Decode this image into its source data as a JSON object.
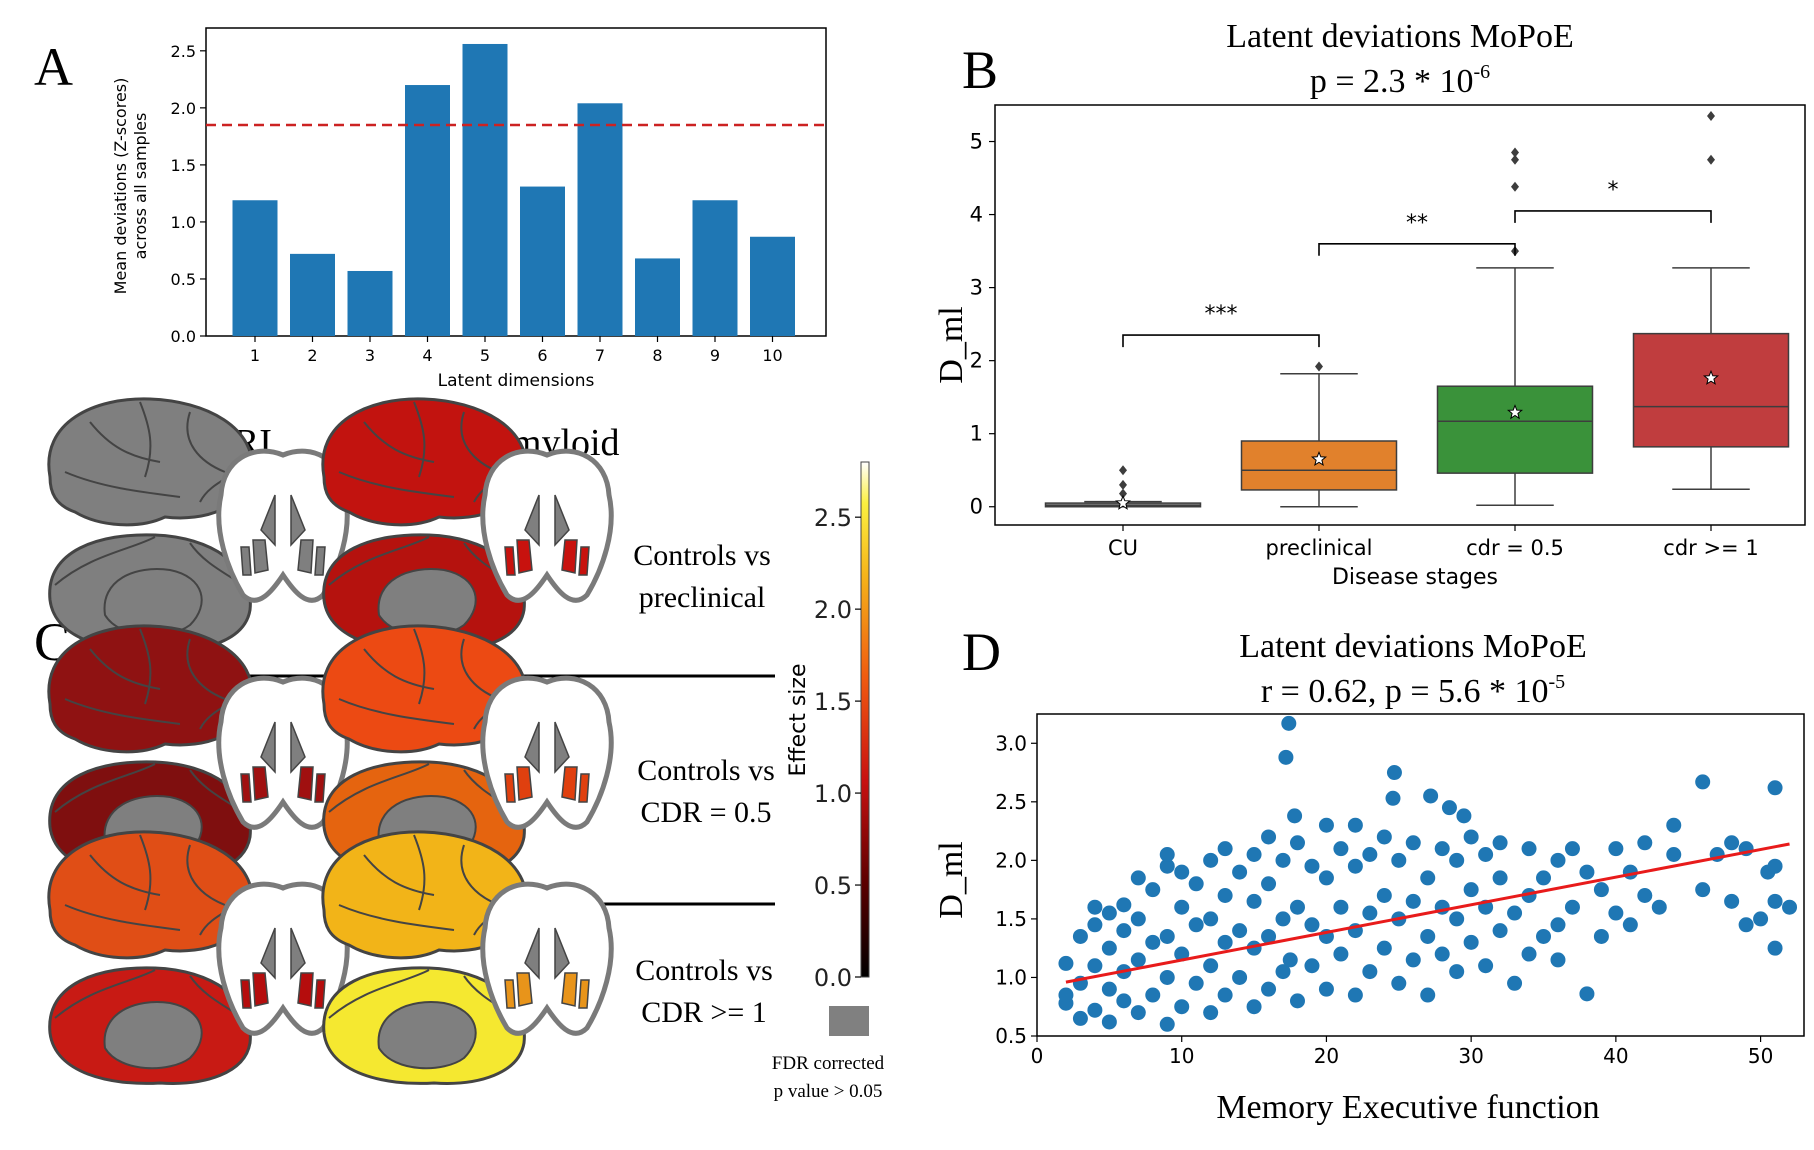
{
  "colors": {
    "bar": "#1f77b4",
    "threshold": "#cc2222",
    "box_preclinical": "#e1812c",
    "box_cdr05": "#3a923a",
    "box_cdr1": "#c03d3e",
    "scatter": "#1f77b4",
    "fit_line": "#e81b1b",
    "grey_region": "#808080"
  },
  "panel_letters": {
    "a": "A",
    "b": "B",
    "c": "C",
    "d": "D"
  },
  "panel_a": {
    "ylabel_line1": "Mean deviations (Z-scores)",
    "ylabel_line2": "across all samples",
    "xlabel": "Latent dimensions"
  },
  "panel_b": {
    "title_line1": "Latent deviations MoPoE",
    "title_p": "p = 2.3 * 10",
    "title_exp": "-6",
    "ylabel": "D_ml",
    "xlabel": "Disease stages",
    "significance": [
      "***",
      "**",
      "*"
    ]
  },
  "panel_c": {
    "col_mri": "MRI",
    "col_amyloid": "Amyloid",
    "rows": [
      {
        "line1": "Controls vs",
        "line2": "preclinical"
      },
      {
        "line1": "Controls vs",
        "line2": "CDR = 0.5"
      },
      {
        "line1": "Controls vs",
        "line2": "CDR >= 1"
      }
    ],
    "colorbar_label": "Effect size",
    "colorbar_ticks": [
      "2.5",
      "2.0",
      "1.5",
      "1.0",
      "0.5",
      "0.0"
    ],
    "legend_line1": "FDR corrected",
    "legend_line2": "p value > 0.05"
  },
  "panel_d": {
    "title_line1": "Latent deviations MoPoE",
    "title_stats": "r = 0.62, p = 5.6 * 10",
    "title_exp": "-5",
    "ylabel": "D_ml",
    "xlabel": "Memory Executive function"
  },
  "chart_data": [
    {
      "type": "bar",
      "categories": [
        "1",
        "2",
        "3",
        "4",
        "5",
        "6",
        "7",
        "8",
        "9",
        "10"
      ],
      "values": [
        1.19,
        0.72,
        0.57,
        2.2,
        2.56,
        1.31,
        2.04,
        0.68,
        1.19,
        0.87
      ],
      "threshold_line": 1.85,
      "xlabel": "Latent dimensions",
      "ylabel": "Mean deviations (Z-scores) across all samples",
      "ylim": [
        0,
        2.7
      ],
      "yticks": [
        "0.0",
        "0.5",
        "1.0",
        "1.5",
        "2.0",
        "2.5"
      ]
    },
    {
      "type": "box",
      "title": "Latent deviations MoPoE",
      "categories": [
        "CU",
        "preclinical",
        "cdr = 0.5",
        "cdr >= 1"
      ],
      "xlabel": "Disease stages",
      "ylabel": "D_ml",
      "ylim": [
        -0.25,
        5.5
      ],
      "yticks": [
        "0",
        "1",
        "2",
        "3",
        "4",
        "5"
      ],
      "boxes": [
        {
          "name": "CU",
          "whisker_low": 0.0,
          "q1": 0.0,
          "median": 0.02,
          "q3": 0.05,
          "whisker_high": 0.07,
          "mean": 0.05,
          "outliers": [
            0.18,
            0.3,
            0.5
          ]
        },
        {
          "name": "preclinical",
          "whisker_low": 0.0,
          "q1": 0.23,
          "median": 0.5,
          "q3": 0.9,
          "whisker_high": 1.82,
          "mean": 0.65,
          "outliers": [
            1.92
          ]
        },
        {
          "name": "cdr = 0.5",
          "whisker_low": 0.02,
          "q1": 0.46,
          "median": 1.17,
          "q3": 1.65,
          "whisker_high": 3.27,
          "mean": 1.29,
          "outliers": [
            3.5,
            4.38,
            4.75,
            4.85
          ]
        },
        {
          "name": "cdr >= 1",
          "whisker_low": 0.24,
          "q1": 0.82,
          "median": 1.37,
          "q3": 2.37,
          "whisker_high": 3.27,
          "mean": 1.76,
          "outliers": [
            4.75,
            5.35
          ]
        }
      ],
      "comparisons": [
        {
          "from": "CU",
          "to": "preclinical",
          "label": "***"
        },
        {
          "from": "preclinical",
          "to": "cdr = 0.5",
          "label": "**"
        },
        {
          "from": "cdr = 0.5",
          "to": "cdr >= 1",
          "label": "*"
        }
      ]
    },
    {
      "type": "scatter",
      "title": "Latent deviations MoPoE",
      "xlabel": "Memory Executive function",
      "ylabel": "D_ml",
      "xlim": [
        0,
        53
      ],
      "ylim": [
        0.5,
        3.25
      ],
      "xticks": [
        "0",
        "10",
        "20",
        "30",
        "40",
        "50"
      ],
      "yticks": [
        "0.5",
        "1.0",
        "1.5",
        "2.0",
        "2.5",
        "3.0"
      ],
      "fit_line": {
        "x": [
          2,
          52
        ],
        "y": [
          0.96,
          2.14
        ]
      },
      "points": [
        [
          2,
          0.78
        ],
        [
          2,
          0.85
        ],
        [
          2,
          1.12
        ],
        [
          3,
          0.65
        ],
        [
          3,
          0.95
        ],
        [
          3,
          1.35
        ],
        [
          4,
          0.72
        ],
        [
          4,
          1.1
        ],
        [
          4,
          1.45
        ],
        [
          4,
          1.6
        ],
        [
          5,
          0.62
        ],
        [
          5,
          0.9
        ],
        [
          5,
          1.25
        ],
        [
          5,
          1.55
        ],
        [
          6,
          0.8
        ],
        [
          6,
          1.05
        ],
        [
          6,
          1.4
        ],
        [
          6,
          1.62
        ],
        [
          7,
          0.7
        ],
        [
          7,
          1.15
        ],
        [
          7,
          1.5
        ],
        [
          7,
          1.85
        ],
        [
          8,
          0.85
        ],
        [
          8,
          1.3
        ],
        [
          8,
          1.75
        ],
        [
          9,
          0.6
        ],
        [
          9,
          1.0
        ],
        [
          9,
          1.35
        ],
        [
          9,
          1.95
        ],
        [
          9,
          2.05
        ],
        [
          10,
          0.75
        ],
        [
          10,
          1.2
        ],
        [
          10,
          1.6
        ],
        [
          10,
          1.9
        ],
        [
          11,
          0.95
        ],
        [
          11,
          1.45
        ],
        [
          11,
          1.8
        ],
        [
          12,
          0.7
        ],
        [
          12,
          1.1
        ],
        [
          12,
          1.5
        ],
        [
          12,
          2.0
        ],
        [
          13,
          0.85
        ],
        [
          13,
          1.3
        ],
        [
          13,
          1.7
        ],
        [
          13,
          2.1
        ],
        [
          14,
          1.0
        ],
        [
          14,
          1.4
        ],
        [
          14,
          1.9
        ],
        [
          15,
          0.75
        ],
        [
          15,
          1.25
        ],
        [
          15,
          1.65
        ],
        [
          15,
          2.05
        ],
        [
          16,
          0.9
        ],
        [
          16,
          1.35
        ],
        [
          16,
          1.8
        ],
        [
          16,
          2.2
        ],
        [
          17,
          1.05
        ],
        [
          17,
          1.5
        ],
        [
          17,
          2.0
        ],
        [
          17.2,
          2.88
        ],
        [
          17.4,
          3.17
        ],
        [
          17.5,
          1.15
        ],
        [
          17.8,
          2.38
        ],
        [
          18,
          0.8
        ],
        [
          18,
          1.6
        ],
        [
          18,
          2.15
        ],
        [
          19,
          1.1
        ],
        [
          19,
          1.45
        ],
        [
          19,
          1.95
        ],
        [
          20,
          0.9
        ],
        [
          20,
          1.35
        ],
        [
          20,
          1.85
        ],
        [
          20,
          2.3
        ],
        [
          21,
          1.2
        ],
        [
          21,
          1.6
        ],
        [
          21,
          2.1
        ],
        [
          22,
          0.85
        ],
        [
          22,
          1.4
        ],
        [
          22,
          1.95
        ],
        [
          22,
          2.3
        ],
        [
          23,
          1.05
        ],
        [
          23,
          1.55
        ],
        [
          23,
          2.05
        ],
        [
          24,
          1.25
        ],
        [
          24,
          1.7
        ],
        [
          24,
          2.2
        ],
        [
          24.6,
          2.53
        ],
        [
          24.7,
          2.75
        ],
        [
          25,
          0.95
        ],
        [
          25,
          1.5
        ],
        [
          25,
          2.0
        ],
        [
          26,
          1.15
        ],
        [
          26,
          1.65
        ],
        [
          26,
          2.15
        ],
        [
          27,
          0.85
        ],
        [
          27,
          1.35
        ],
        [
          27,
          1.85
        ],
        [
          27.2,
          2.55
        ],
        [
          28,
          1.2
        ],
        [
          28,
          1.6
        ],
        [
          28,
          2.1
        ],
        [
          28.5,
          2.45
        ],
        [
          29,
          1.05
        ],
        [
          29,
          1.5
        ],
        [
          29,
          2.0
        ],
        [
          29.5,
          2.38
        ],
        [
          30,
          1.3
        ],
        [
          30,
          1.75
        ],
        [
          30,
          2.2
        ],
        [
          31,
          1.1
        ],
        [
          31,
          1.6
        ],
        [
          31,
          2.05
        ],
        [
          32,
          1.4
        ],
        [
          32,
          1.85
        ],
        [
          32,
          2.15
        ],
        [
          33,
          0.95
        ],
        [
          33,
          1.55
        ],
        [
          34,
          1.2
        ],
        [
          34,
          1.7
        ],
        [
          34,
          2.1
        ],
        [
          35,
          1.35
        ],
        [
          35,
          1.85
        ],
        [
          36,
          1.45
        ],
        [
          36,
          2.0
        ],
        [
          36,
          1.15
        ],
        [
          37,
          1.6
        ],
        [
          37,
          2.1
        ],
        [
          38,
          0.86
        ],
        [
          38,
          1.9
        ],
        [
          39,
          1.35
        ],
        [
          39,
          1.75
        ],
        [
          40,
          1.55
        ],
        [
          40,
          2.1
        ],
        [
          41,
          1.45
        ],
        [
          41,
          1.9
        ],
        [
          42,
          1.7
        ],
        [
          42,
          2.15
        ],
        [
          43,
          1.6
        ],
        [
          44,
          2.05
        ],
        [
          44,
          2.3
        ],
        [
          46,
          2.67
        ],
        [
          46,
          1.75
        ],
        [
          47,
          2.05
        ],
        [
          48,
          1.65
        ],
        [
          48,
          2.15
        ],
        [
          49,
          1.45
        ],
        [
          49,
          2.1
        ],
        [
          50,
          1.5
        ],
        [
          50.5,
          1.9
        ],
        [
          51,
          1.25
        ],
        [
          51,
          1.65
        ],
        [
          51,
          1.95
        ],
        [
          51,
          2.62
        ],
        [
          52,
          1.6
        ]
      ]
    }
  ]
}
